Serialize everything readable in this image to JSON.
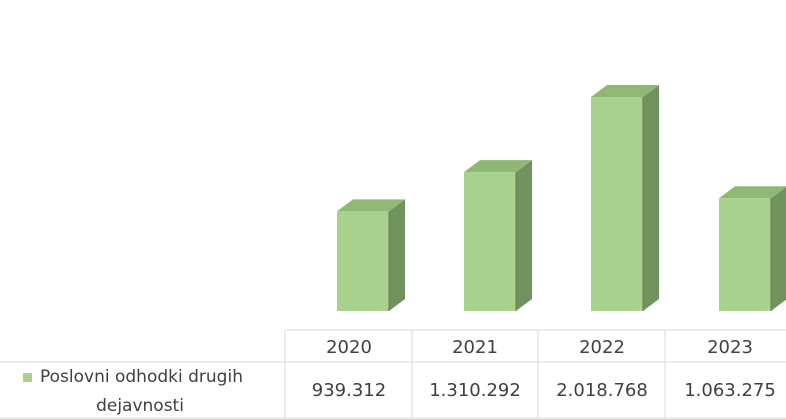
{
  "chart_data": {
    "type": "bar",
    "title": "",
    "xlabel": "",
    "ylabel": "",
    "ylim": [
      0,
      2200000
    ],
    "grid": false,
    "legend_placement": "data-table",
    "categories": [
      "2020",
      "2021",
      "2022",
      "2023"
    ],
    "series": [
      {
        "name": "Poslovni odhodki drugih dejavnosti",
        "values": [
          939312,
          1310292,
          2018768,
          1063275
        ],
        "value_labels": [
          "939.312",
          "1.310.292",
          "2.018.768",
          "1.063.275"
        ],
        "color": "#a9d18e"
      }
    ]
  },
  "colors": {
    "bar_front": "#a9d18e",
    "bar_side": "#70935d",
    "bar_top": "#8fb874",
    "table_border": "#d9d9d9",
    "legend_marker": "#a9d18e"
  }
}
